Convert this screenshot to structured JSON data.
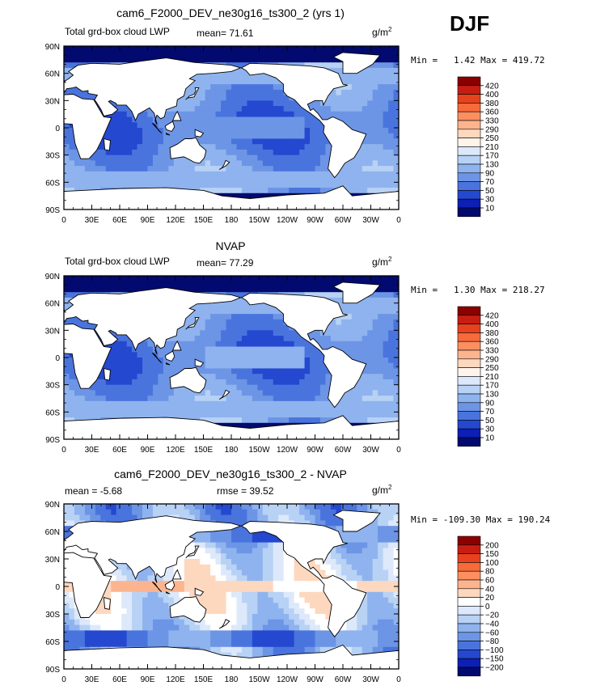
{
  "season": "DJF",
  "panels": [
    {
      "title": "cam6_F2000_DEV_ne30g16_ts300_2 (yrs 1)",
      "left_label": "Total grd-box cloud LWP",
      "center_label": "mean=  71.61",
      "units": "g/m",
      "units_sup": "2",
      "minmax": "Min =   1.42 Max = 419.72",
      "colorbar_labels": [
        "420",
        "400",
        "380",
        "360",
        "330",
        "290",
        "250",
        "210",
        "170",
        "130",
        "90",
        "70",
        "50",
        "30",
        "10"
      ]
    },
    {
      "title": "NVAP",
      "left_label": "Total grd-box cloud LWP",
      "center_label": "mean=  77.29",
      "units": "g/m",
      "units_sup": "2",
      "minmax": "Min =   1.30 Max = 218.27",
      "colorbar_labels": [
        "420",
        "400",
        "380",
        "360",
        "330",
        "290",
        "250",
        "210",
        "170",
        "130",
        "90",
        "70",
        "50",
        "30",
        "10"
      ]
    },
    {
      "title": "cam6_F2000_DEV_ne30g16_ts300_2 - NVAP",
      "left_label": "mean =  -5.68",
      "center_label": "rmse =  39.52",
      "units": "g/m",
      "units_sup": "2",
      "minmax": "Min = -109.30 Max = 190.24",
      "colorbar_labels": [
        "200",
        "150",
        "100",
        "80",
        "60",
        "40",
        "20",
        "0",
        "−20",
        "−40",
        "−60",
        "−80",
        "−100",
        "−150",
        "−200"
      ]
    }
  ],
  "chart_data": [
    {
      "type": "heatmap",
      "title": "cam6_F2000_DEV_ne30g16_ts300_2 (yrs 1)",
      "variable": "Total grd-box cloud LWP",
      "units": "g/m2",
      "mean": 71.61,
      "min": 1.42,
      "max": 419.72,
      "x_ticks": [
        "0",
        "30E",
        "60E",
        "90E",
        "120E",
        "150E",
        "180",
        "150W",
        "120W",
        "90W",
        "60W",
        "30W",
        "0"
      ],
      "y_ticks": [
        "90N",
        "60N",
        "30N",
        "0",
        "30S",
        "60S",
        "90S"
      ],
      "levels": [
        10,
        30,
        50,
        70,
        90,
        130,
        170,
        210,
        250,
        290,
        330,
        360,
        380,
        400,
        420
      ]
    },
    {
      "type": "heatmap",
      "title": "NVAP",
      "variable": "Total grd-box cloud LWP",
      "units": "g/m2",
      "mean": 77.29,
      "min": 1.3,
      "max": 218.27,
      "x_ticks": [
        "0",
        "30E",
        "60E",
        "90E",
        "120E",
        "150E",
        "180",
        "150W",
        "120W",
        "90W",
        "60W",
        "30W",
        "0"
      ],
      "y_ticks": [
        "90N",
        "60N",
        "30N",
        "0",
        "30S",
        "60S",
        "90S"
      ],
      "levels": [
        10,
        30,
        50,
        70,
        90,
        130,
        170,
        210,
        250,
        290,
        330,
        360,
        380,
        400,
        420
      ]
    },
    {
      "type": "heatmap",
      "title": "cam6_F2000_DEV_ne30g16_ts300_2 - NVAP",
      "units": "g/m2",
      "mean": -5.68,
      "rmse": 39.52,
      "min": -109.3,
      "max": 190.24,
      "x_ticks": [
        "0",
        "30E",
        "60E",
        "90E",
        "120E",
        "150E",
        "180",
        "150W",
        "120W",
        "90W",
        "60W",
        "30W",
        "0"
      ],
      "y_ticks": [
        "90N",
        "60N",
        "30N",
        "0",
        "30S",
        "60S",
        "90S"
      ],
      "levels": [
        -200,
        -150,
        -100,
        -80,
        -60,
        -40,
        -20,
        0,
        20,
        40,
        60,
        80,
        100,
        150,
        200
      ]
    }
  ],
  "colors": {
    "abs_scale": [
      "#8b0000",
      "#c81e12",
      "#e8411e",
      "#f76a3a",
      "#fb8f60",
      "#fcb48f",
      "#fdd8bf",
      "#fff4ea",
      "#dde9fa",
      "#b8d2f5",
      "#8fb3ee",
      "#6d95e6",
      "#4a74dd",
      "#2448cf",
      "#0d1fb4",
      "#020a70"
    ],
    "diff_scale": [
      "#8b0000",
      "#c81e12",
      "#e8411e",
      "#f76a3a",
      "#fb8f60",
      "#fcb48f",
      "#fdd8bf",
      "#ffffff",
      "#dde9fa",
      "#b8d2f5",
      "#8fb3ee",
      "#6d95e6",
      "#4a74dd",
      "#2448cf",
      "#0d1fb4",
      "#020a70"
    ],
    "land": "#ffffff"
  }
}
